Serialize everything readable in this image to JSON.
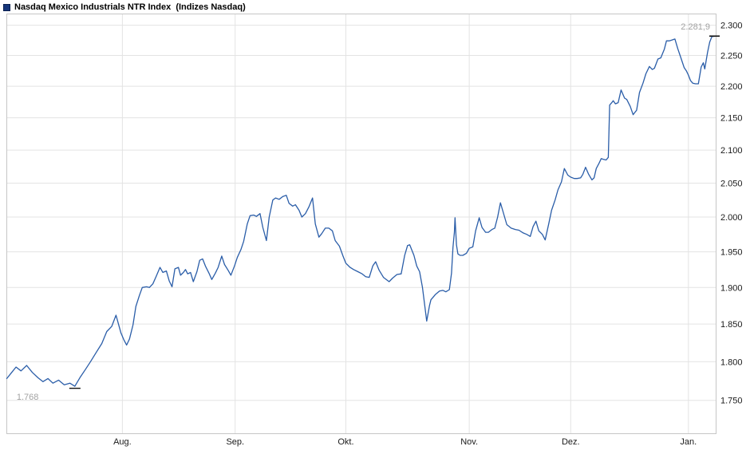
{
  "header": {
    "title": "Nasdaq Mexico Industrials NTR Index  (Indizes Nasdaq)"
  },
  "colors": {
    "line": "#2a5da8",
    "grid": "#e3e3e3",
    "border": "#c6c6c6",
    "axis_text": "#1a1a1a",
    "annotation_text": "#a3a3a3",
    "annotation_tick": "#111111",
    "legend_swatch_fill": "#15357a",
    "legend_swatch_border": "#0b2050",
    "background": "#ffffff"
  },
  "chart_data": {
    "type": "line",
    "title": "Nasdaq Mexico Industrials NTR Index  (Indizes Nasdaq)",
    "ylabel": "",
    "xlabel": "",
    "y_scale": "log",
    "grid": true,
    "y_axis_side": "right",
    "y_domain": {
      "top_value": 2319,
      "bottom_value": 1708
    },
    "y_ticks": [
      {
        "v": 2300,
        "label": "2.300"
      },
      {
        "v": 2250,
        "label": "2.250"
      },
      {
        "v": 2200,
        "label": "2.200"
      },
      {
        "v": 2150,
        "label": "2.150"
      },
      {
        "v": 2100,
        "label": "2.100"
      },
      {
        "v": 2050,
        "label": "2.050"
      },
      {
        "v": 2000,
        "label": "2.000"
      },
      {
        "v": 1950,
        "label": "1.950"
      },
      {
        "v": 1900,
        "label": "1.900"
      },
      {
        "v": 1850,
        "label": "1.850"
      },
      {
        "v": 1800,
        "label": "1.800"
      },
      {
        "v": 1750,
        "label": "1.750"
      }
    ],
    "x_months": [
      {
        "label": "Aug.",
        "f": 0.163
      },
      {
        "label": "Sep.",
        "f": 0.322
      },
      {
        "label": "Okt.",
        "f": 0.478
      },
      {
        "label": "Nov.",
        "f": 0.652
      },
      {
        "label": "Dez.",
        "f": 0.795
      },
      {
        "label": "Jan.",
        "f": 0.961
      }
    ],
    "annotations": {
      "last": {
        "label": "2.281,9",
        "value": 2281.9
      },
      "low": {
        "label": "1.768",
        "value": 1768,
        "f": 0.096
      }
    },
    "series": [
      {
        "name": "Nasdaq Mexico Industrials NTR Index",
        "color": "#2a5da8",
        "points": [
          [
            0.0,
            1778
          ],
          [
            0.007,
            1786
          ],
          [
            0.013,
            1793
          ],
          [
            0.02,
            1788
          ],
          [
            0.028,
            1795
          ],
          [
            0.036,
            1786
          ],
          [
            0.044,
            1779
          ],
          [
            0.051,
            1774
          ],
          [
            0.058,
            1778
          ],
          [
            0.065,
            1772
          ],
          [
            0.073,
            1776
          ],
          [
            0.081,
            1770
          ],
          [
            0.089,
            1772
          ],
          [
            0.096,
            1768
          ],
          [
            0.103,
            1779
          ],
          [
            0.111,
            1790
          ],
          [
            0.118,
            1800
          ],
          [
            0.126,
            1812
          ],
          [
            0.134,
            1824
          ],
          [
            0.141,
            1840
          ],
          [
            0.148,
            1847
          ],
          [
            0.154,
            1862
          ],
          [
            0.161,
            1838
          ],
          [
            0.165,
            1829
          ],
          [
            0.169,
            1822
          ],
          [
            0.173,
            1830
          ],
          [
            0.178,
            1849
          ],
          [
            0.182,
            1874
          ],
          [
            0.187,
            1889
          ],
          [
            0.191,
            1900
          ],
          [
            0.197,
            1901
          ],
          [
            0.201,
            1900
          ],
          [
            0.206,
            1905
          ],
          [
            0.21,
            1914
          ],
          [
            0.216,
            1928
          ],
          [
            0.22,
            1921
          ],
          [
            0.225,
            1923
          ],
          [
            0.229,
            1909
          ],
          [
            0.233,
            1901
          ],
          [
            0.237,
            1926
          ],
          [
            0.242,
            1928
          ],
          [
            0.245,
            1917
          ],
          [
            0.249,
            1921
          ],
          [
            0.252,
            1925
          ],
          [
            0.255,
            1919
          ],
          [
            0.259,
            1921
          ],
          [
            0.263,
            1908
          ],
          [
            0.268,
            1922
          ],
          [
            0.272,
            1938
          ],
          [
            0.276,
            1940
          ],
          [
            0.28,
            1930
          ],
          [
            0.285,
            1920
          ],
          [
            0.289,
            1911
          ],
          [
            0.294,
            1920
          ],
          [
            0.298,
            1928
          ],
          [
            0.303,
            1944
          ],
          [
            0.307,
            1932
          ],
          [
            0.312,
            1924
          ],
          [
            0.316,
            1917
          ],
          [
            0.321,
            1930
          ],
          [
            0.325,
            1942
          ],
          [
            0.33,
            1953
          ],
          [
            0.334,
            1965
          ],
          [
            0.339,
            1990
          ],
          [
            0.343,
            2002
          ],
          [
            0.348,
            2003
          ],
          [
            0.352,
            2001
          ],
          [
            0.357,
            2005
          ],
          [
            0.361,
            1985
          ],
          [
            0.366,
            1966
          ],
          [
            0.37,
            2000
          ],
          [
            0.375,
            2025
          ],
          [
            0.379,
            2028
          ],
          [
            0.384,
            2026
          ],
          [
            0.389,
            2030
          ],
          [
            0.394,
            2032
          ],
          [
            0.398,
            2020
          ],
          [
            0.403,
            2016
          ],
          [
            0.407,
            2018
          ],
          [
            0.412,
            2010
          ],
          [
            0.416,
            2000
          ],
          [
            0.421,
            2005
          ],
          [
            0.426,
            2015
          ],
          [
            0.431,
            2028
          ],
          [
            0.435,
            1990
          ],
          [
            0.44,
            1971
          ],
          [
            0.444,
            1976
          ],
          [
            0.449,
            1984
          ],
          [
            0.454,
            1984
          ],
          [
            0.459,
            1980
          ],
          [
            0.463,
            1966
          ],
          [
            0.469,
            1958
          ],
          [
            0.474,
            1944
          ],
          [
            0.478,
            1934
          ],
          [
            0.484,
            1928
          ],
          [
            0.489,
            1925
          ],
          [
            0.495,
            1922
          ],
          [
            0.501,
            1919
          ],
          [
            0.506,
            1915
          ],
          [
            0.511,
            1914
          ],
          [
            0.516,
            1930
          ],
          [
            0.52,
            1936
          ],
          [
            0.525,
            1924
          ],
          [
            0.531,
            1914
          ],
          [
            0.539,
            1908
          ],
          [
            0.544,
            1913
          ],
          [
            0.55,
            1918
          ],
          [
            0.556,
            1919
          ],
          [
            0.561,
            1945
          ],
          [
            0.565,
            1959
          ],
          [
            0.568,
            1960
          ],
          [
            0.574,
            1945
          ],
          [
            0.578,
            1930
          ],
          [
            0.582,
            1922
          ],
          [
            0.586,
            1900
          ],
          [
            0.592,
            1854
          ],
          [
            0.596,
            1875
          ],
          [
            0.598,
            1883
          ],
          [
            0.604,
            1890
          ],
          [
            0.61,
            1895
          ],
          [
            0.615,
            1896
          ],
          [
            0.619,
            1894
          ],
          [
            0.624,
            1897
          ],
          [
            0.627,
            1920
          ],
          [
            0.629,
            1956
          ],
          [
            0.631,
            1978
          ],
          [
            0.632,
            1999
          ],
          [
            0.634,
            1960
          ],
          [
            0.636,
            1947
          ],
          [
            0.639,
            1945
          ],
          [
            0.643,
            1945
          ],
          [
            0.648,
            1948
          ],
          [
            0.652,
            1955
          ],
          [
            0.657,
            1957
          ],
          [
            0.661,
            1980
          ],
          [
            0.666,
            1999
          ],
          [
            0.67,
            1985
          ],
          [
            0.675,
            1978
          ],
          [
            0.679,
            1978
          ],
          [
            0.684,
            1982
          ],
          [
            0.688,
            1984
          ],
          [
            0.692,
            2000
          ],
          [
            0.696,
            2021
          ],
          [
            0.701,
            2003
          ],
          [
            0.705,
            1989
          ],
          [
            0.711,
            1984
          ],
          [
            0.717,
            1982
          ],
          [
            0.722,
            1981
          ],
          [
            0.728,
            1977
          ],
          [
            0.733,
            1975
          ],
          [
            0.738,
            1972
          ],
          [
            0.742,
            1986
          ],
          [
            0.746,
            1994
          ],
          [
            0.75,
            1980
          ],
          [
            0.755,
            1975
          ],
          [
            0.759,
            1967
          ],
          [
            0.764,
            1990
          ],
          [
            0.768,
            2010
          ],
          [
            0.773,
            2025
          ],
          [
            0.777,
            2040
          ],
          [
            0.782,
            2052
          ],
          [
            0.786,
            2072
          ],
          [
            0.791,
            2062
          ],
          [
            0.795,
            2059
          ],
          [
            0.8,
            2057
          ],
          [
            0.804,
            2057
          ],
          [
            0.809,
            2058
          ],
          [
            0.812,
            2063
          ],
          [
            0.816,
            2074
          ],
          [
            0.82,
            2064
          ],
          [
            0.825,
            2055
          ],
          [
            0.828,
            2058
          ],
          [
            0.831,
            2072
          ],
          [
            0.835,
            2080
          ],
          [
            0.838,
            2087
          ],
          [
            0.841,
            2086
          ],
          [
            0.845,
            2085
          ],
          [
            0.848,
            2089
          ],
          [
            0.85,
            2170
          ],
          [
            0.853,
            2174
          ],
          [
            0.855,
            2177
          ],
          [
            0.858,
            2172
          ],
          [
            0.862,
            2174
          ],
          [
            0.866,
            2194
          ],
          [
            0.871,
            2181
          ],
          [
            0.874,
            2179
          ],
          [
            0.879,
            2168
          ],
          [
            0.883,
            2155
          ],
          [
            0.888,
            2162
          ],
          [
            0.892,
            2190
          ],
          [
            0.897,
            2205
          ],
          [
            0.901,
            2220
          ],
          [
            0.906,
            2232
          ],
          [
            0.91,
            2227
          ],
          [
            0.913,
            2229
          ],
          [
            0.918,
            2244
          ],
          [
            0.922,
            2246
          ],
          [
            0.927,
            2260
          ],
          [
            0.93,
            2274
          ],
          [
            0.934,
            2274
          ],
          [
            0.937,
            2275
          ],
          [
            0.942,
            2277
          ],
          [
            0.946,
            2261
          ],
          [
            0.951,
            2244
          ],
          [
            0.955,
            2230
          ],
          [
            0.958,
            2225
          ],
          [
            0.961,
            2218
          ],
          [
            0.964,
            2209
          ],
          [
            0.967,
            2205
          ],
          [
            0.971,
            2204
          ],
          [
            0.975,
            2204
          ],
          [
            0.979,
            2231
          ],
          [
            0.982,
            2238
          ],
          [
            0.984,
            2228
          ],
          [
            0.988,
            2255
          ],
          [
            0.991,
            2272
          ],
          [
            0.994,
            2281
          ],
          [
            1.0,
            2281.9
          ]
        ]
      }
    ]
  }
}
